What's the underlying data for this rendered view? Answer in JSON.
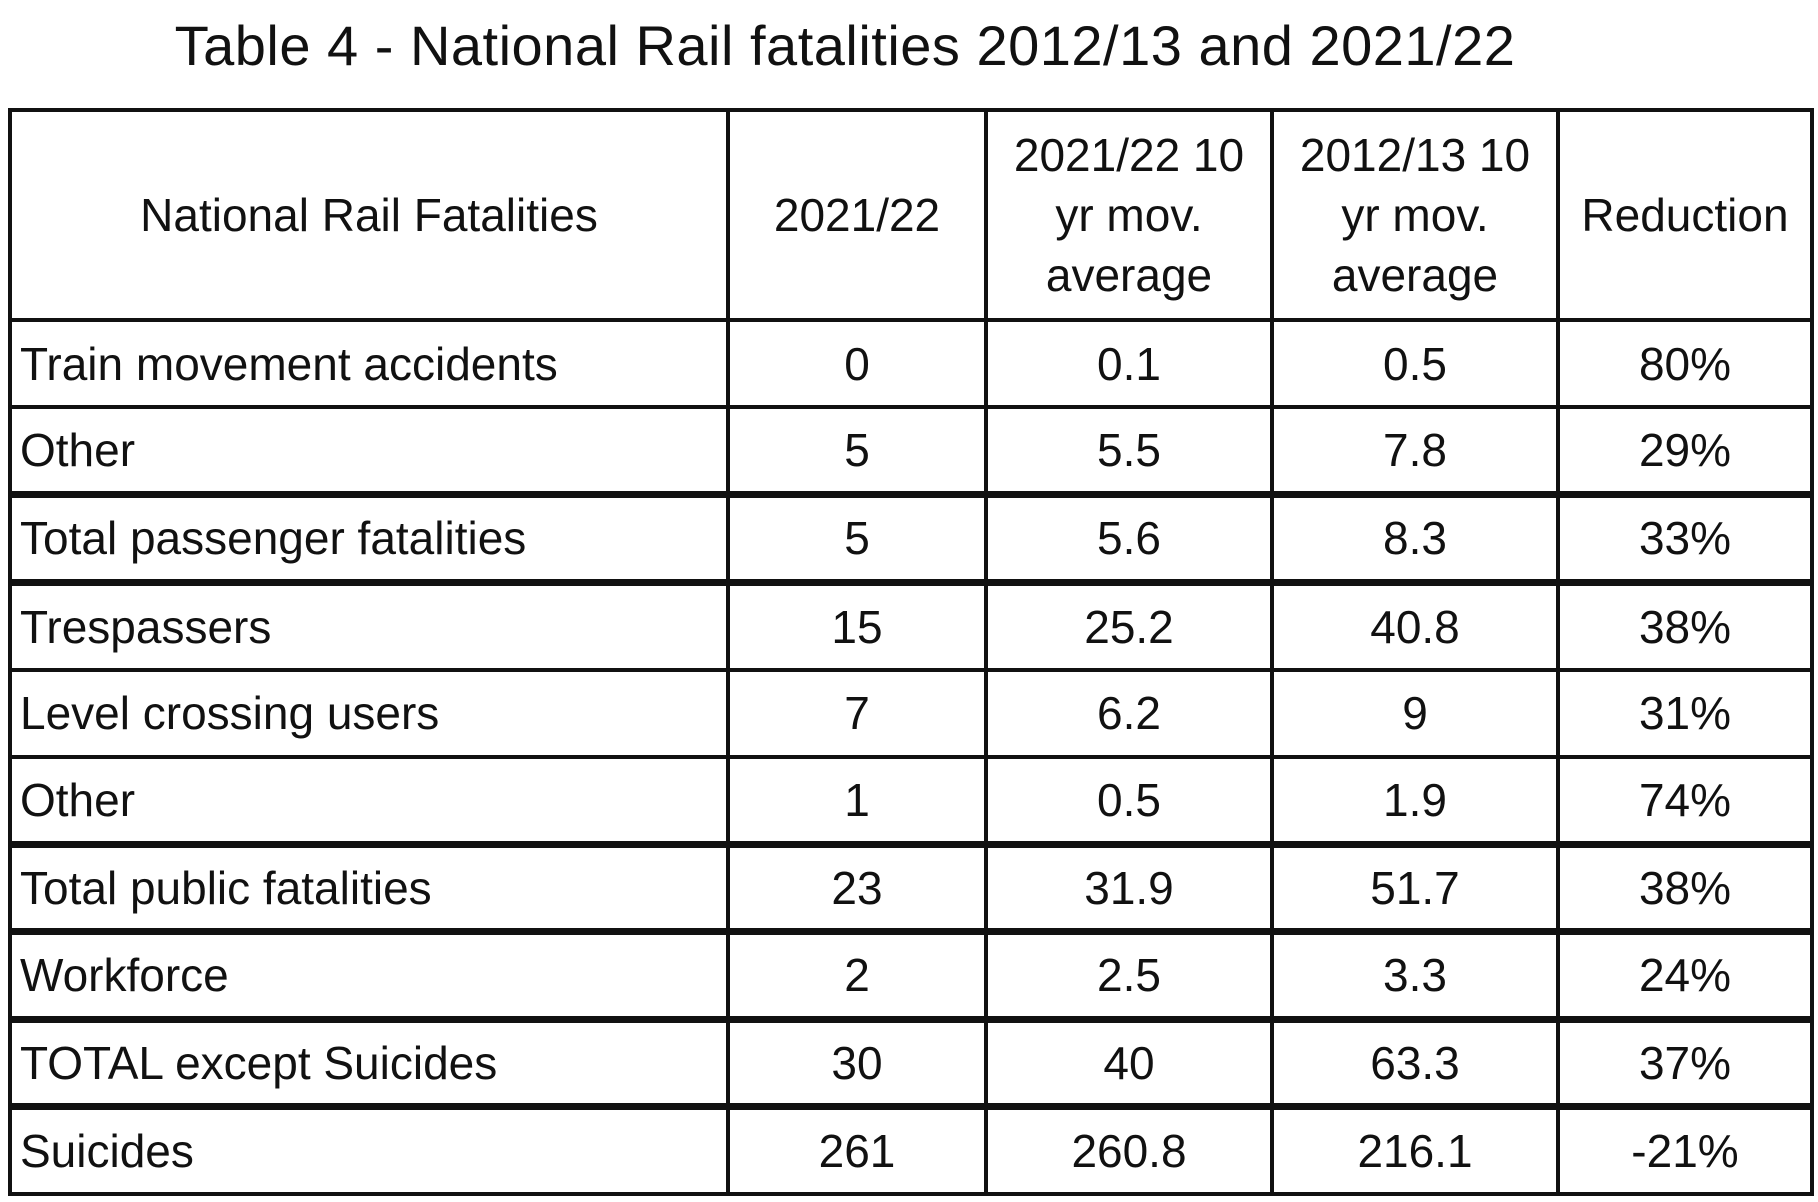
{
  "title": "Table 4 - National Rail fatalities 2012/13 and 2021/22",
  "table": {
    "headers": [
      [
        "National Rail Fatalities"
      ],
      [
        "2021/22"
      ],
      [
        "2021/22 10",
        "yr mov.",
        "average"
      ],
      [
        "2012/13 10",
        "yr mov.",
        "average"
      ],
      [
        "Reduction"
      ]
    ],
    "rows": [
      [
        "Train movement accidents",
        "0",
        "0.1",
        "0.5",
        "80%"
      ],
      [
        "Other",
        "5",
        "5.5",
        "7.8",
        "29%"
      ],
      [
        "Total passenger fatalities",
        "5",
        "5.6",
        "8.3",
        "33%"
      ],
      [
        "Trespassers",
        "15",
        "25.2",
        "40.8",
        "38%"
      ],
      [
        "Level crossing users",
        "7",
        "6.2",
        "9",
        "31%"
      ],
      [
        "Other",
        "1",
        "0.5",
        "1.9",
        "74%"
      ],
      [
        "Total public fatalities",
        "23",
        "31.9",
        "51.7",
        "38%"
      ],
      [
        "Workforce",
        "2",
        "2.5",
        "3.3",
        "24%"
      ],
      [
        "TOTAL except Suicides",
        "30",
        "40",
        "63.3",
        "37%"
      ],
      [
        "Suicides",
        "261",
        "260.8",
        "216.1",
        "-21%"
      ]
    ]
  },
  "chart_data": {
    "type": "table",
    "title": "Table 4 - National Rail fatalities 2012/13 and 2021/22",
    "columns": [
      "National Rail Fatalities",
      "2021/22",
      "2021/22 10 yr mov. average",
      "2012/13 10 yr mov. average",
      "Reduction"
    ],
    "categories": [
      "Train movement accidents",
      "Other",
      "Total passenger fatalities",
      "Trespassers",
      "Level crossing users",
      "Other",
      "Total public fatalities",
      "Workforce",
      "TOTAL except Suicides",
      "Suicides"
    ],
    "series": [
      {
        "name": "2021/22",
        "values": [
          0,
          5,
          5,
          15,
          7,
          1,
          23,
          2,
          30,
          261
        ]
      },
      {
        "name": "2021/22 10 yr mov. average",
        "values": [
          0.1,
          5.5,
          5.6,
          25.2,
          6.2,
          0.5,
          31.9,
          2.5,
          40,
          260.8
        ]
      },
      {
        "name": "2012/13 10 yr mov. average",
        "values": [
          0.5,
          7.8,
          8.3,
          40.8,
          9,
          1.9,
          51.7,
          3.3,
          63.3,
          216.1
        ]
      },
      {
        "name": "Reduction",
        "values": [
          "80%",
          "29%",
          "33%",
          "38%",
          "31%",
          "74%",
          "38%",
          "24%",
          "37%",
          "-21%"
        ]
      }
    ]
  }
}
